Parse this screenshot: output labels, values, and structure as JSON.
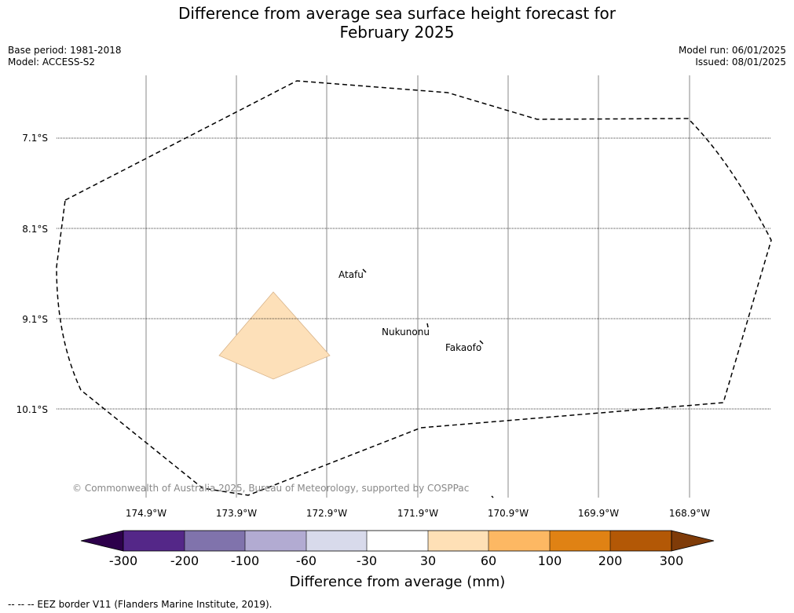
{
  "title": {
    "line1": "Difference from average sea surface height forecast for",
    "line2": "February 2025"
  },
  "meta": {
    "base_period": "Base period: 1981-2018",
    "model": "Model: ACCESS-S2",
    "model_run": "Model run: 06/01/2025",
    "issued": "Issued: 08/01/2025"
  },
  "map": {
    "lat_labels": [
      "7.1°S",
      "8.1°S",
      "9.1°S",
      "10.1°S"
    ],
    "lon_labels": [
      "174.9°W",
      "173.9°W",
      "172.9°W",
      "171.9°W",
      "170.9°W",
      "169.9°W",
      "168.9°W"
    ],
    "places": [
      {
        "name": "Atafu"
      },
      {
        "name": "Nukunonu"
      },
      {
        "name": "Fakaofo"
      }
    ],
    "anomaly_patch": {
      "category": "30 to 60",
      "color": "#fde0b9"
    },
    "eez_border_color": "#000000",
    "copyright": "© Commonwealth of Australia 2025, Bureau of Meteorology, supported by COSPPac"
  },
  "colorbar": {
    "ticks": [
      "-300",
      "-200",
      "-100",
      "-60",
      "-30",
      "30",
      "60",
      "100",
      "200",
      "300"
    ],
    "colors": {
      "below": "#2d004b",
      "bins": [
        "#542788",
        "#8073ac",
        "#b2abd2",
        "#d8daeb",
        "#ffffff",
        "#fee0b6",
        "#fdb863",
        "#e08214",
        "#b35806"
      ],
      "above": "#7f3b08"
    },
    "label": "Difference from average (mm)"
  },
  "footer": {
    "legend_text": "--  --  -- EEZ border V11 (Flanders Marine Institute, 2019)."
  }
}
